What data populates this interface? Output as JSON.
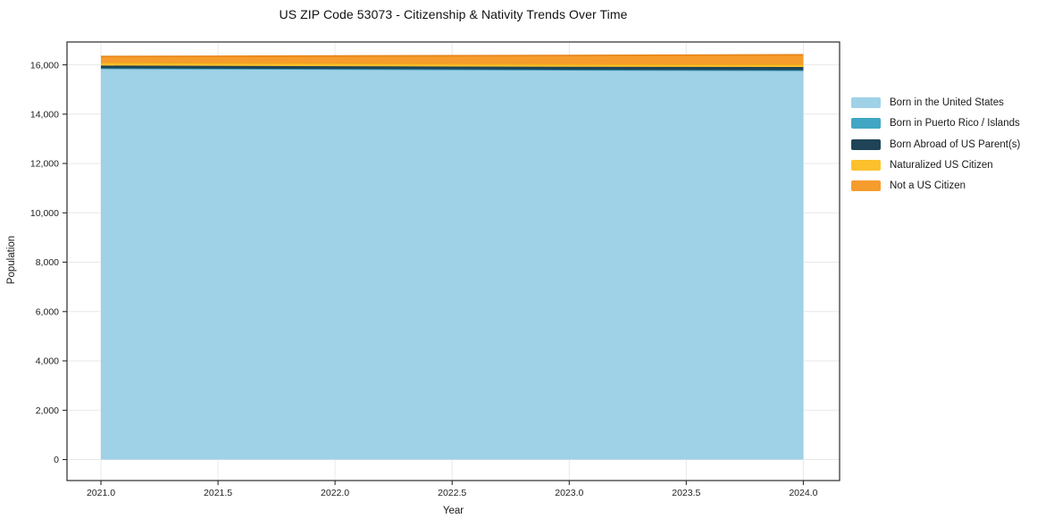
{
  "chart_data": {
    "type": "area",
    "stacked": true,
    "title": "US ZIP Code 53073 - Citizenship & Nativity Trends Over Time",
    "xlabel": "Year",
    "ylabel": "Population",
    "x": [
      2021,
      2022,
      2023,
      2024
    ],
    "series": [
      {
        "name": "Born in the United States",
        "color": "#9FD1E7",
        "edge": "#8EC7E0",
        "values": [
          15850,
          15820,
          15790,
          15770
        ]
      },
      {
        "name": "Born in Puerto Rico / Islands",
        "color": "#41A6C4",
        "edge": "#3797B5",
        "values": [
          10,
          10,
          10,
          10
        ]
      },
      {
        "name": "Born Abroad of US Parent(s)",
        "color": "#1F4457",
        "edge": "#1F4457",
        "values": [
          110,
          115,
          120,
          130
        ]
      },
      {
        "name": "Naturalized US Citizen",
        "color": "#FCC02C",
        "edge": "#F0AC15",
        "values": [
          115,
          110,
          105,
          100
        ]
      },
      {
        "name": "Not a US Citizen",
        "color": "#F69C2D",
        "edge": "#E8861A",
        "values": [
          250,
          300,
          355,
          395
        ]
      }
    ],
    "xticks": {
      "values": [
        2021.0,
        2021.5,
        2022.0,
        2022.5,
        2023.0,
        2023.5,
        2024.0
      ],
      "labels": [
        "2021.0",
        "2021.5",
        "2022.0",
        "2022.5",
        "2023.0",
        "2023.5",
        "2024.0"
      ]
    },
    "yticks": {
      "values": [
        0,
        2000,
        4000,
        6000,
        8000,
        10000,
        12000,
        14000,
        16000
      ],
      "labels": [
        "0",
        "2,000",
        "4,000",
        "6,000",
        "8,000",
        "10,000",
        "12,000",
        "14,000",
        "16,000"
      ]
    },
    "xlim": [
      2020.855,
      2024.155
    ],
    "ylim": [
      -850,
      16925
    ],
    "grid": true,
    "legend_position": "right-outside",
    "colors": {
      "grid": "#e8e8e8",
      "spine": "#2b2b2b",
      "tick_label": "#1f1f1f",
      "background": "#ffffff"
    }
  }
}
